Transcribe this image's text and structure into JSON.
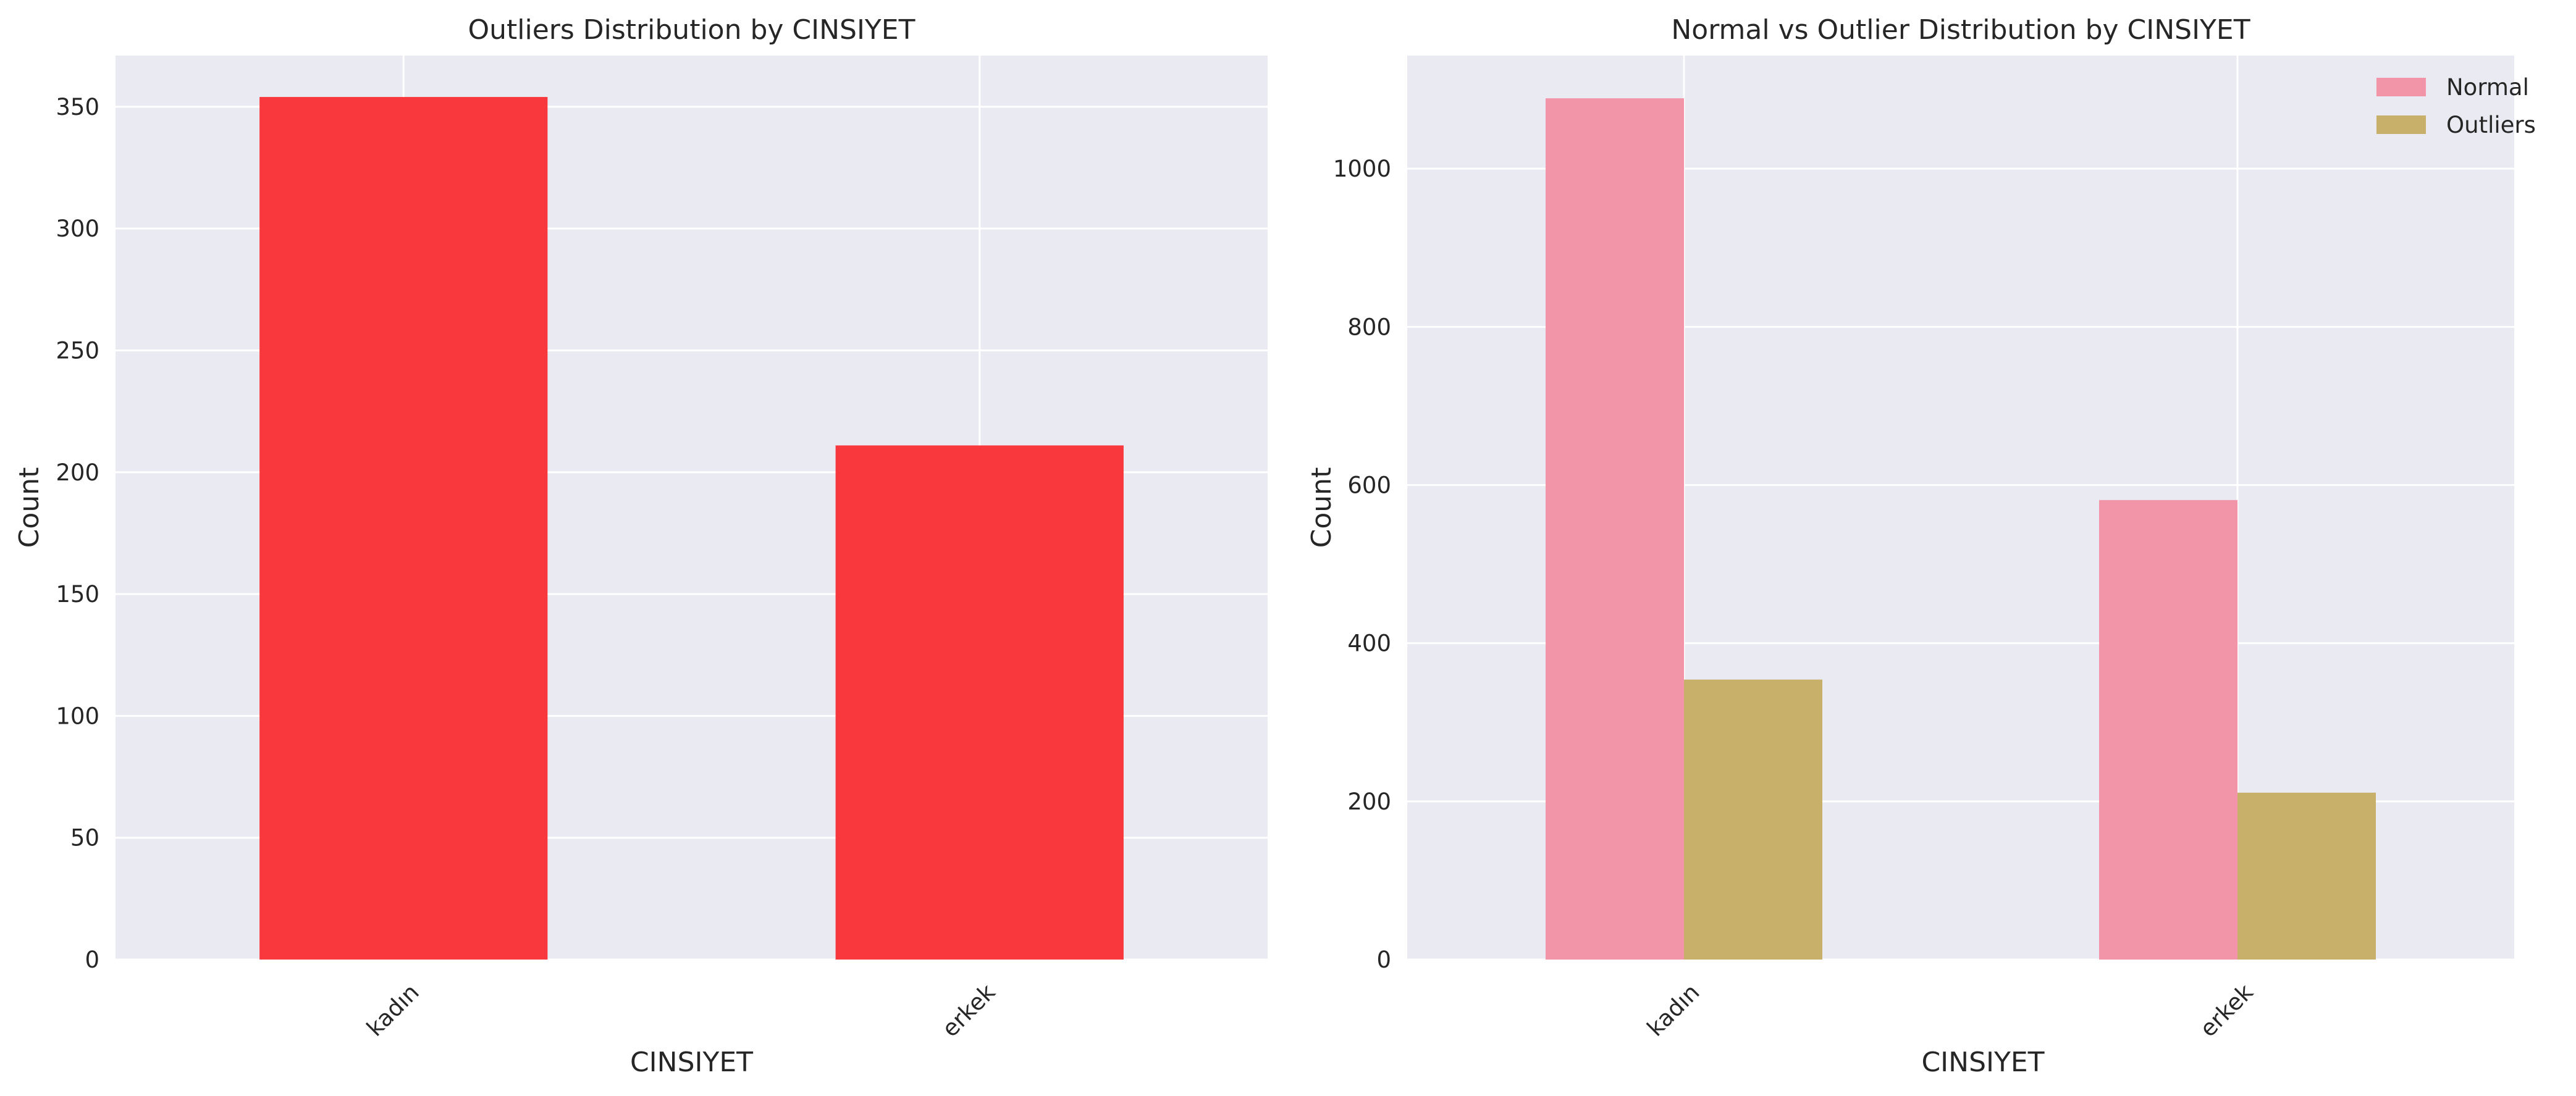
{
  "chart_data": [
    {
      "type": "bar",
      "title": "Outliers Distribution by CINSIYET",
      "xlabel": "CINSIYET",
      "ylabel": "Count",
      "categories": [
        "kadın",
        "erkek"
      ],
      "series": [
        {
          "values": [
            354,
            211
          ],
          "color": "#f8383c"
        }
      ],
      "ylim": [
        0,
        371
      ],
      "yticks": [
        0,
        50,
        100,
        150,
        200,
        250,
        300,
        350
      ],
      "grid": true,
      "legend": false
    },
    {
      "type": "bar",
      "title": "Normal vs Outlier Distribution by CINSIYET",
      "xlabel": "CINSIYET",
      "ylabel": "Count",
      "categories": [
        "kadın",
        "erkek"
      ],
      "series": [
        {
          "name": "Normal",
          "values": [
            1089,
            581
          ],
          "color": "#f295a8"
        },
        {
          "name": "Outliers",
          "values": [
            354,
            211
          ],
          "color": "#c8b06a"
        }
      ],
      "ylim": [
        0,
        1143
      ],
      "yticks": [
        0,
        200,
        400,
        600,
        800,
        1000
      ],
      "grid": true,
      "legend": "top-right"
    }
  ]
}
